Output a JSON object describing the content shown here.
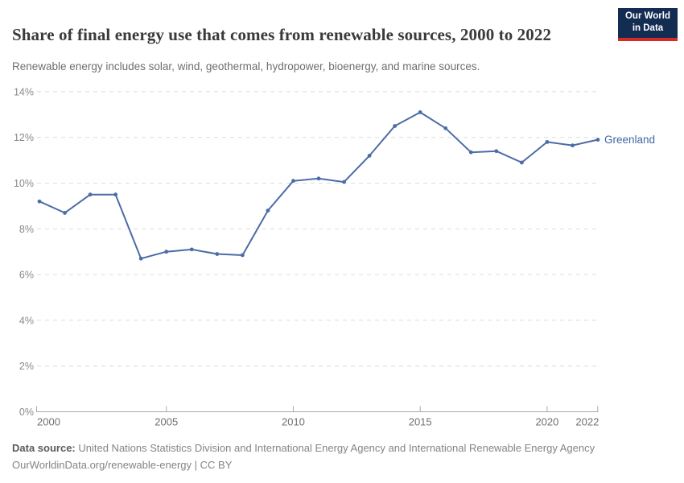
{
  "header": {
    "title": "Share of final energy use that comes from renewable sources, 2000 to 2022",
    "subtitle": "Renewable energy includes solar, wind, geothermal, hydropower, bioenergy, and marine sources."
  },
  "logo": {
    "line1": "Our World",
    "line2": "in Data",
    "bg_color": "#132c52",
    "accent_color": "#d42b24"
  },
  "chart_data": {
    "type": "line",
    "title": "Share of final energy use that comes from renewable sources, 2000 to 2022",
    "xlabel": "",
    "ylabel": "",
    "xlim": [
      2000,
      2022
    ],
    "ylim": [
      0,
      14
    ],
    "x_ticks": [
      2000,
      2005,
      2010,
      2015,
      2020,
      2022
    ],
    "y_ticks": [
      0,
      2,
      4,
      6,
      8,
      10,
      12,
      14
    ],
    "y_tick_suffix": "%",
    "grid": "horizontal-dashed",
    "legend": "end-of-line-label",
    "x": [
      2000,
      2001,
      2002,
      2003,
      2004,
      2005,
      2006,
      2007,
      2008,
      2009,
      2010,
      2011,
      2012,
      2013,
      2014,
      2015,
      2016,
      2017,
      2018,
      2019,
      2020,
      2021,
      2022
    ],
    "series": [
      {
        "name": "Greenland",
        "color": "#4c6ca6",
        "label_color": "#3f67a2",
        "values": [
          9.2,
          8.7,
          9.5,
          9.5,
          6.7,
          7.0,
          7.1,
          6.9,
          6.85,
          8.8,
          10.1,
          10.2,
          10.05,
          11.2,
          12.5,
          13.1,
          12.4,
          11.35,
          11.4,
          10.9,
          11.8,
          11.65,
          11.9
        ]
      }
    ],
    "colors": {
      "gridline": "#dcdcdc",
      "axis_line": "#a8a8a8",
      "y_tick_label": "#8a8a8a",
      "x_tick_label": "#707070"
    }
  },
  "footer": {
    "source_label": "Data source:",
    "source_text": " United Nations Statistics Division and International Energy Agency and International Renewable Energy Agency",
    "link_line": "OurWorldinData.org/renewable-energy | CC BY"
  }
}
